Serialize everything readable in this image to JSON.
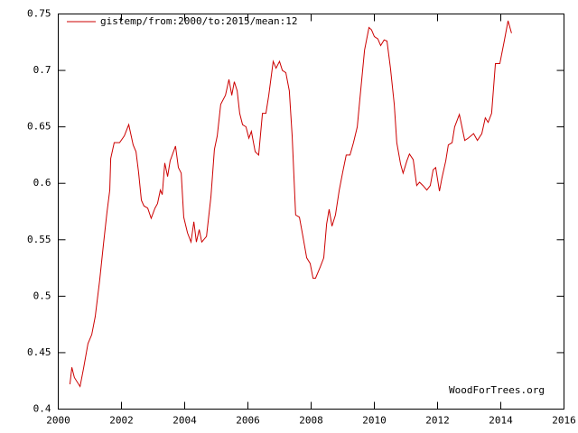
{
  "chart_data": {
    "type": "line",
    "legend_position": "top-left",
    "annotation": "WoodForTrees.org",
    "xlim": [
      2000,
      2016
    ],
    "xticks": [
      2000,
      2002,
      2004,
      2006,
      2008,
      2010,
      2012,
      2014,
      2016
    ],
    "ylim": [
      0.4,
      0.75
    ],
    "yticks": [
      0.4,
      0.45,
      0.5,
      0.55,
      0.6,
      0.65,
      0.7,
      0.75
    ],
    "grid": false,
    "x": [
      2000.37,
      2000.43,
      2000.51,
      2000.69,
      2000.8,
      2000.94,
      2001.06,
      2001.17,
      2001.31,
      2001.43,
      2001.54,
      2001.63,
      2001.66,
      2001.77,
      2001.94,
      2002.09,
      2002.23,
      2002.37,
      2002.46,
      2002.54,
      2002.63,
      2002.71,
      2002.83,
      2002.94,
      2003.06,
      2003.14,
      2003.23,
      2003.29,
      2003.37,
      2003.46,
      2003.54,
      2003.71,
      2003.8,
      2003.89,
      2003.97,
      2004.09,
      2004.2,
      2004.29,
      2004.37,
      2004.46,
      2004.54,
      2004.69,
      2004.83,
      2004.94,
      2005.03,
      2005.14,
      2005.29,
      2005.4,
      2005.49,
      2005.57,
      2005.66,
      2005.74,
      2005.83,
      2005.94,
      2006.03,
      2006.11,
      2006.23,
      2006.34,
      2006.46,
      2006.57,
      2006.66,
      2006.8,
      2006.89,
      2007.0,
      2007.09,
      2007.2,
      2007.31,
      2007.4,
      2007.51,
      2007.63,
      2007.74,
      2007.86,
      2007.97,
      2008.06,
      2008.14,
      2008.29,
      2008.4,
      2008.49,
      2008.57,
      2008.66,
      2008.77,
      2008.89,
      2009.0,
      2009.11,
      2009.23,
      2009.34,
      2009.46,
      2009.54,
      2009.69,
      2009.83,
      2009.91,
      2010.0,
      2010.11,
      2010.2,
      2010.31,
      2010.4,
      2010.51,
      2010.63,
      2010.71,
      2010.83,
      2010.91,
      2011.03,
      2011.11,
      2011.23,
      2011.34,
      2011.43,
      2011.54,
      2011.66,
      2011.77,
      2011.86,
      2011.94,
      2012.06,
      2012.14,
      2012.26,
      2012.34,
      2012.46,
      2012.54,
      2012.69,
      2012.86,
      2012.97,
      2013.14,
      2013.26,
      2013.4,
      2013.51,
      2013.6,
      2013.71,
      2013.83,
      2013.97,
      2014.11,
      2014.23,
      2014.34
    ],
    "series": [
      {
        "name": "gistemp/from:2000/to:2015/mean:12",
        "color": "#cc0000",
        "values": [
          0.422,
          0.437,
          0.428,
          0.42,
          0.436,
          0.458,
          0.466,
          0.482,
          0.514,
          0.546,
          0.574,
          0.594,
          0.622,
          0.636,
          0.636,
          0.642,
          0.652,
          0.634,
          0.628,
          0.61,
          0.585,
          0.58,
          0.578,
          0.569,
          0.578,
          0.582,
          0.594,
          0.59,
          0.618,
          0.606,
          0.62,
          0.633,
          0.614,
          0.609,
          0.57,
          0.556,
          0.548,
          0.566,
          0.548,
          0.559,
          0.548,
          0.553,
          0.588,
          0.63,
          0.642,
          0.67,
          0.678,
          0.692,
          0.678,
          0.69,
          0.682,
          0.662,
          0.652,
          0.65,
          0.64,
          0.646,
          0.628,
          0.625,
          0.662,
          0.662,
          0.678,
          0.708,
          0.702,
          0.708,
          0.7,
          0.698,
          0.682,
          0.642,
          0.572,
          0.57,
          0.553,
          0.534,
          0.529,
          0.516,
          0.516,
          0.526,
          0.534,
          0.564,
          0.577,
          0.562,
          0.572,
          0.594,
          0.61,
          0.625,
          0.625,
          0.636,
          0.65,
          0.674,
          0.718,
          0.738,
          0.736,
          0.73,
          0.728,
          0.722,
          0.727,
          0.726,
          0.702,
          0.67,
          0.636,
          0.617,
          0.609,
          0.62,
          0.626,
          0.621,
          0.598,
          0.601,
          0.598,
          0.594,
          0.598,
          0.612,
          0.614,
          0.593,
          0.605,
          0.62,
          0.634,
          0.636,
          0.65,
          0.661,
          0.638,
          0.64,
          0.644,
          0.638,
          0.644,
          0.658,
          0.654,
          0.662,
          0.706,
          0.706,
          0.726,
          0.744,
          0.733
        ]
      }
    ]
  }
}
